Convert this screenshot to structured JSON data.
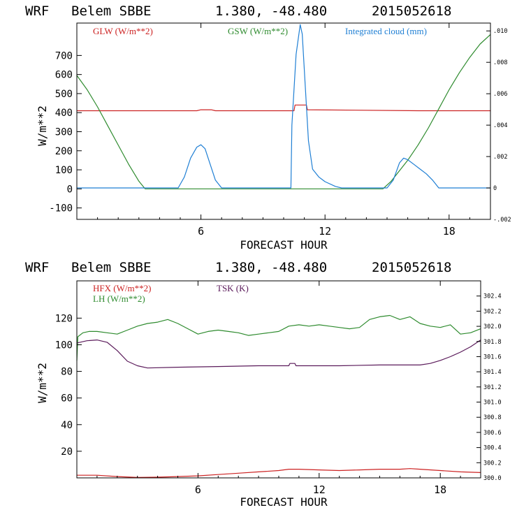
{
  "chart_data": [
    {
      "type": "line",
      "header": {
        "model": "WRF",
        "station": "Belem SBBE",
        "coords": "1.380, -48.480",
        "datetime": "2015052618"
      },
      "xlabel": "FORECAST HOUR",
      "ylabel": "W/m**2",
      "xlim": [
        0,
        20
      ],
      "ylim": [
        -160,
        870
      ],
      "y2lim": [
        -0.002,
        0.0105
      ],
      "x_ticks": [
        "6",
        "12",
        "18"
      ],
      "x_tick_values": [
        6,
        12,
        18
      ],
      "y_ticks": [
        "-100",
        "0",
        "100",
        "200",
        "300",
        "400",
        "500",
        "600",
        "700"
      ],
      "y_tick_values": [
        -100,
        0,
        100,
        200,
        300,
        400,
        500,
        600,
        700
      ],
      "y2_ticks": [
        "-.002",
        "0",
        ".002",
        ".004",
        ".006",
        ".008",
        ".010"
      ],
      "y2_tick_values": [
        -0.002,
        0,
        0.002,
        0.004,
        0.006,
        0.008,
        0.01
      ],
      "legend": [
        "GLW (W/m**2)",
        "GSW (W/m**2)",
        "Integrated cloud (mm)"
      ],
      "series": [
        {
          "name": "GLW (W/m**2)",
          "axis": "left",
          "color": "#cc2222",
          "x": [
            0,
            5.8,
            6.0,
            6.5,
            6.7,
            10.5,
            10.55,
            10.8,
            10.85,
            11.1,
            11.15,
            16.5,
            20
          ],
          "y": [
            410,
            410,
            415,
            415,
            410,
            410,
            440,
            440,
            440,
            440,
            415,
            410,
            410
          ]
        },
        {
          "name": "GSW (W/m**2)",
          "axis": "left",
          "color": "#2e8b2e",
          "x": [
            0,
            0.5,
            1,
            1.5,
            2,
            2.5,
            3,
            3.3,
            14.8,
            15.2,
            16,
            16.5,
            17,
            17.5,
            18,
            18.5,
            19,
            19.5,
            20
          ],
          "y": [
            595,
            520,
            430,
            330,
            230,
            130,
            40,
            0,
            0,
            40,
            150,
            230,
            320,
            420,
            520,
            610,
            690,
            760,
            810
          ]
        },
        {
          "name": "Integrated cloud (mm)",
          "axis": "right",
          "color": "#1f7fd4",
          "x": [
            0,
            4.9,
            5.2,
            5.5,
            5.8,
            6.0,
            6.2,
            6.4,
            6.7,
            7.0,
            10.35,
            10.4,
            10.6,
            10.8,
            10.9,
            11.0,
            11.2,
            11.4,
            11.7,
            12.0,
            12.5,
            12.8,
            15.0,
            15.3,
            15.6,
            15.8,
            16.0,
            16.3,
            16.6,
            16.9,
            17.2,
            17.5,
            20
          ],
          "y": [
            0,
            0,
            0.0007,
            0.0019,
            0.0026,
            0.00275,
            0.0025,
            0.0017,
            0.0005,
            0,
            0,
            0.004,
            0.0085,
            0.0104,
            0.0098,
            0.0075,
            0.003,
            0.0012,
            0.0007,
            0.0004,
            0.0001,
            0,
            0,
            0.0005,
            0.0016,
            0.0019,
            0.0018,
            0.0015,
            0.0012,
            0.0009,
            0.0005,
            0,
            0
          ]
        }
      ]
    },
    {
      "type": "line",
      "header": {
        "model": "WRF",
        "station": "Belem SBBE",
        "coords": "1.380, -48.480",
        "datetime": "2015052618"
      },
      "xlabel": "FORECAST HOUR",
      "ylabel": "W/m**2",
      "xlim": [
        0,
        20
      ],
      "ylim": [
        0,
        148
      ],
      "y2lim": [
        300.0,
        302.6
      ],
      "x_ticks": [
        "6",
        "12",
        "18"
      ],
      "x_tick_values": [
        6,
        12,
        18
      ],
      "y_ticks": [
        "20",
        "40",
        "60",
        "80",
        "100",
        "120"
      ],
      "y_tick_values": [
        20,
        40,
        60,
        80,
        100,
        120
      ],
      "y2_ticks": [
        "300.0",
        "300.2",
        "300.4",
        "300.6",
        "300.8",
        "301.0",
        "301.2",
        "301.4",
        "301.6",
        "301.8",
        "302.0",
        "302.2",
        "302.4"
      ],
      "y2_tick_values": [
        300.0,
        300.2,
        300.4,
        300.6,
        300.8,
        301.0,
        301.2,
        301.4,
        301.6,
        301.8,
        302.0,
        302.2,
        302.4
      ],
      "legend": [
        "HFX (W/m**2)",
        "LH  (W/m**2)",
        "TSK (K)"
      ],
      "series": [
        {
          "name": "HFX (W/m**2)",
          "axis": "left",
          "color": "#cc2222",
          "x": [
            0,
            1,
            2,
            3,
            4,
            5,
            6,
            7,
            8,
            9,
            10,
            10.5,
            11,
            12,
            13,
            14,
            15,
            16,
            16.5,
            17,
            18,
            19,
            20
          ],
          "y": [
            2,
            2,
            1,
            0.3,
            0.5,
            1,
            1.5,
            2.5,
            3.5,
            4.5,
            5.5,
            6.5,
            6.5,
            6,
            5.5,
            6,
            6.5,
            6.5,
            7,
            6.5,
            5.5,
            4.5,
            4
          ]
        },
        {
          "name": "LH  (W/m**2)",
          "axis": "left",
          "color": "#2e8b2e",
          "x": [
            0,
            0.05,
            0.3,
            0.6,
            1,
            1.5,
            2,
            2.5,
            3,
            3.5,
            4,
            4.5,
            5,
            5.5,
            6,
            6.5,
            7,
            7.5,
            8,
            8.5,
            9,
            9.5,
            10,
            10.5,
            11,
            11.5,
            12,
            12.5,
            13,
            13.5,
            14,
            14.5,
            15,
            15.5,
            16,
            16.5,
            17,
            17.5,
            18,
            18.5,
            19,
            19.5,
            20
          ],
          "y": [
            88,
            106,
            109,
            110,
            110,
            109,
            108,
            111,
            114,
            116,
            117,
            119,
            116,
            112,
            108,
            110,
            111,
            110,
            109,
            107,
            108,
            109,
            110,
            114,
            115,
            114,
            115,
            114,
            113,
            112,
            113,
            119,
            121,
            122,
            119,
            121,
            116,
            114,
            113,
            115,
            108,
            109,
            112
          ]
        },
        {
          "name": "TSK (K)",
          "axis": "right",
          "color": "#5a1a5a",
          "x": [
            0,
            0.5,
            1,
            1.5,
            2,
            2.5,
            3,
            3.5,
            5,
            7,
            9,
            10.5,
            10.55,
            10.8,
            10.85,
            11,
            13,
            15,
            16,
            17,
            17.5,
            18,
            18.5,
            19,
            19.5,
            20
          ],
          "y": [
            301.78,
            301.81,
            301.82,
            301.79,
            301.68,
            301.54,
            301.48,
            301.45,
            301.46,
            301.47,
            301.48,
            301.48,
            301.51,
            301.51,
            301.48,
            301.48,
            301.48,
            301.49,
            301.49,
            301.49,
            301.51,
            301.55,
            301.6,
            301.66,
            301.73,
            301.82
          ]
        }
      ]
    }
  ]
}
